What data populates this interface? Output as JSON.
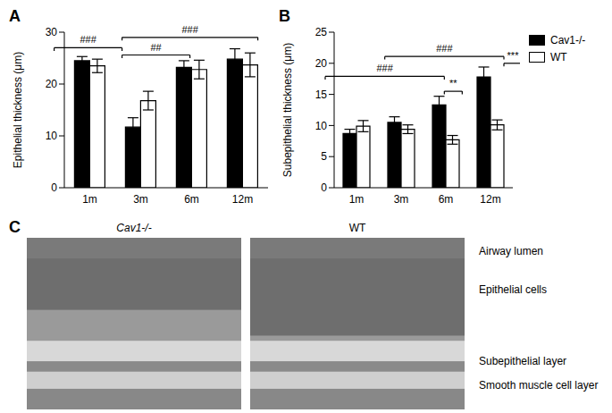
{
  "chart_data": [
    {
      "panel": "A",
      "type": "bar",
      "categories": [
        "1m",
        "3m",
        "6m",
        "12m"
      ],
      "y_label": "Epithelial thickness (μm)",
      "ylim": [
        0,
        30
      ],
      "yticks": [
        0,
        10,
        20,
        30
      ],
      "series": [
        {
          "name": "Cav1-/-",
          "color": "#000000",
          "values": [
            24.5,
            11.7,
            23.2,
            24.8
          ],
          "errors": [
            0.8,
            1.8,
            1.3,
            2.0
          ]
        },
        {
          "name": "WT",
          "color": "#ffffff",
          "values": [
            23.5,
            16.8,
            22.8,
            23.7
          ],
          "errors": [
            1.3,
            1.8,
            1.8,
            2.3
          ]
        }
      ],
      "annotations": [
        {
          "label": "###",
          "from": "1m",
          "from_series": "Cav1-/-",
          "to": "3m",
          "to_series": "Cav1-/-",
          "y": 27
        },
        {
          "label": "##",
          "from": "3m",
          "from_series": "Cav1-/-",
          "to": "6m",
          "to_series": "Cav1-/-",
          "y": 25.6
        },
        {
          "label": "###",
          "from": "3m",
          "from_series": "Cav1-/-",
          "to": "12m",
          "to_series": "Cav1-/-",
          "y": 29
        }
      ]
    },
    {
      "panel": "B",
      "type": "bar",
      "categories": [
        "1m",
        "3m",
        "6m",
        "12m"
      ],
      "y_label": "Subepithelial thickness (μm)",
      "ylim": [
        0,
        25
      ],
      "yticks": [
        0,
        5,
        10,
        15,
        20,
        25
      ],
      "legend": "right",
      "series": [
        {
          "name": "Cav1-/-",
          "color": "#000000",
          "values": [
            8.7,
            10.5,
            13.3,
            17.8
          ],
          "errors": [
            0.7,
            0.9,
            1.4,
            1.6
          ]
        },
        {
          "name": "WT",
          "color": "#ffffff",
          "values": [
            9.9,
            9.4,
            7.7,
            10.1
          ],
          "errors": [
            0.9,
            0.7,
            0.7,
            0.8
          ]
        }
      ],
      "annotations": [
        {
          "label": "###",
          "from": "1m",
          "from_series": "Cav1-/-",
          "to": "6m",
          "to_series": "Cav1-/-",
          "y": 17.9
        },
        {
          "label": "###",
          "from": "3m",
          "from_series": "Cav1-/-",
          "to": "12m",
          "to_series": "Cav1-/-",
          "y": 21.1
        },
        {
          "label": "**",
          "from": "6m",
          "from_series": "Cav1-/-",
          "to": "6m",
          "to_series": "WT",
          "y": 15.5
        },
        {
          "label": "***",
          "from": "12m",
          "from_series": "Cav1-/-",
          "to": "12m",
          "to_series": "WT",
          "y": 20
        }
      ]
    }
  ],
  "panel_c": {
    "panel": "C",
    "images": [
      {
        "label": "Cav1-/-"
      },
      {
        "label": "WT"
      }
    ],
    "layer_labels": [
      "Airway lumen",
      "Epithelial cells",
      "Subepithelial layer",
      "Smooth muscle cell layer"
    ]
  }
}
